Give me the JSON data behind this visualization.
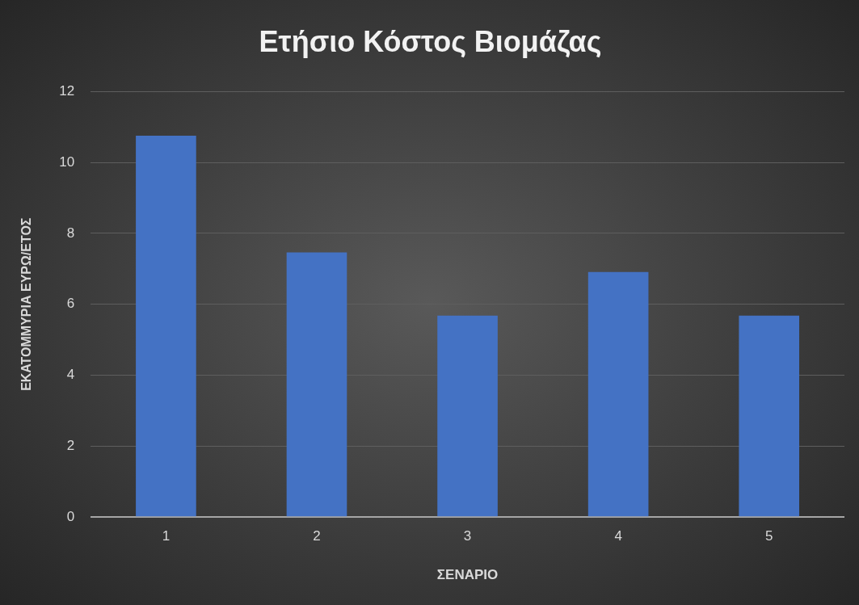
{
  "chart_data": {
    "type": "bar",
    "title": "Ετήσιο Κόστος Βιομάζας",
    "xlabel": "ΣΕΝΑΡΙΟ",
    "ylabel": "ΕΚΑΤΟΜΜΥΡΙΑ ΕΥΡΩ/ΕΤΟΣ",
    "categories": [
      "1",
      "2",
      "3",
      "4",
      "5"
    ],
    "values": [
      10.75,
      7.46,
      5.68,
      6.91,
      5.68
    ],
    "color": "#4472c4",
    "ylim": [
      0,
      12
    ],
    "yticks": [
      0,
      2,
      4,
      6,
      8,
      10,
      12
    ],
    "grid": "y",
    "legend": false
  }
}
